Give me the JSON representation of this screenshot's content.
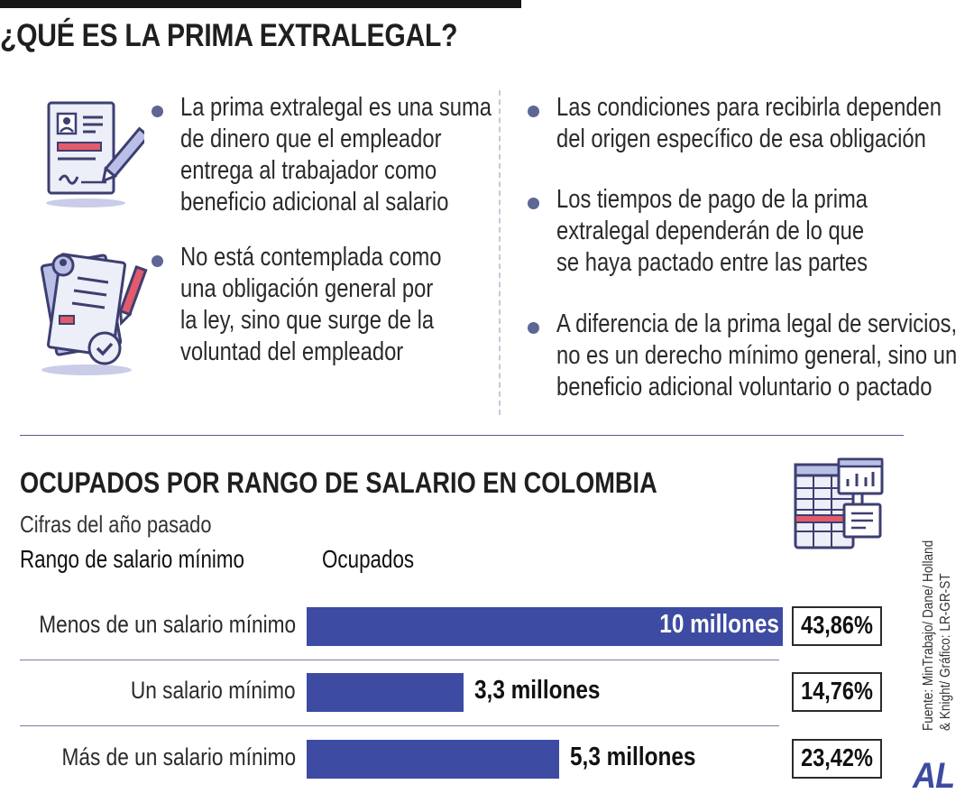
{
  "header": {
    "title": "¿QUÉ ES LA PRIMA EXTRALEGAL?"
  },
  "icons": [
    "resume-document-icon",
    "signed-contract-icon",
    "spreadsheet-chart-icon"
  ],
  "bullets_left": [
    "La prima extralegal es una suma\nde dinero que el empleador\nentrega al trabajador como\nbeneficio adicional al salario",
    "No está contemplada como\nuna obligación general por\nla ley, sino que surge de la\nvoluntad del empleador"
  ],
  "bullets_right": [
    "Las condiciones para recibirla dependen\ndel origen específico de esa obligación",
    "Los tiempos de pago de la prima\nextralegal dependerán de lo que\nse haya pactado entre las partes",
    "A diferencia de la prima legal de servicios,\nno es un derecho mínimo general, sino un\nbeneficio adicional voluntario o pactado"
  ],
  "chart_data": {
    "type": "bar",
    "orientation": "horizontal",
    "title": "OCUPADOS POR RANGO DE SALARIO EN COLOMBIA",
    "subtitle": "Cifras del año pasado",
    "category_header": "Rango de salario mínimo",
    "value_header": "Ocupados",
    "categories": [
      "Menos de un salario mínimo",
      "Un salario mínimo",
      "Más de un salario mínimo"
    ],
    "values": [
      10,
      3.3,
      5.3
    ],
    "value_labels": [
      "10 millones",
      "3,3 millones",
      "5,3 millones"
    ],
    "percent_labels": [
      "43,86%",
      "14,76%",
      "23,42%"
    ],
    "xlim": [
      0,
      10
    ],
    "bar_color": "#3d4ba2"
  },
  "footer": {
    "source_lines": [
      "Fuente: MinTrabajo/ Dane/ Holland",
      "& Knight/ Gráfico: LR-GR-ST"
    ],
    "logo": "AL"
  }
}
